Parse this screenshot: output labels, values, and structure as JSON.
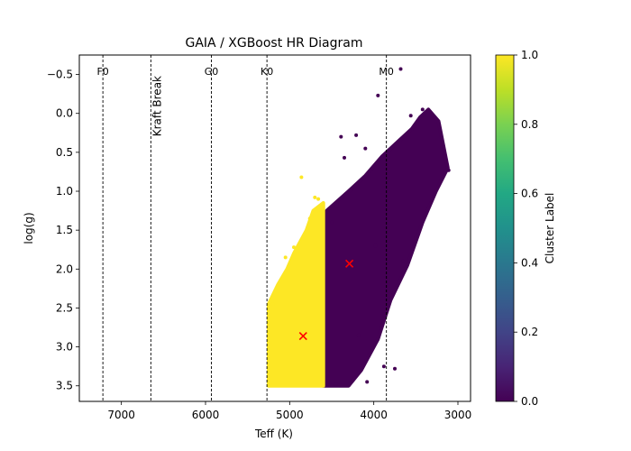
{
  "colors": {
    "background": "#ffffff",
    "cluster_0": "#440154",
    "cluster_1": "#fde725",
    "centroid": "#ff0000",
    "reference_line": "#000000"
  },
  "chart_data": {
    "type": "scatter",
    "title": "GAIA / XGBoost HR Diagram",
    "xlabel": "Teff (K)",
    "ylabel": "log(g)",
    "x_axis_inverted": true,
    "y_axis_inverted": true,
    "xlim": [
      7500,
      2850
    ],
    "ylim": [
      3.7,
      -0.75
    ],
    "x_ticks": [
      7000,
      6000,
      5000,
      4000,
      3000
    ],
    "y_ticks": [
      -0.5,
      0.0,
      0.5,
      1.0,
      1.5,
      2.0,
      2.5,
      3.0,
      3.5
    ],
    "grid": false,
    "colorbar": {
      "label": "Cluster Label",
      "colormap": "viridis",
      "range": [
        0.0,
        1.0
      ],
      "ticks": [
        0.0,
        0.2,
        0.4,
        0.6,
        0.8,
        1.0
      ]
    },
    "reference_lines": [
      {
        "teff": 7220,
        "label": "F0"
      },
      {
        "teff": 6650,
        "label": "Kraft Break",
        "vertical_text": true
      },
      {
        "teff": 5930,
        "label": "G0"
      },
      {
        "teff": 5270,
        "label": "K0"
      },
      {
        "teff": 3850,
        "label": "M0"
      }
    ],
    "centroids": [
      {
        "teff": 4290,
        "logg": 1.93,
        "cluster": 0
      },
      {
        "teff": 4840,
        "logg": 2.86,
        "cluster": 1
      }
    ],
    "clusters": [
      {
        "label": 0,
        "region_polygon": [
          [
            4600,
            3.5
          ],
          [
            4600,
            1.35
          ],
          [
            4560,
            1.25
          ],
          [
            4300,
            1.0
          ],
          [
            4100,
            0.8
          ],
          [
            3900,
            0.55
          ],
          [
            3700,
            0.35
          ],
          [
            3550,
            0.2
          ],
          [
            3450,
            0.05
          ],
          [
            3350,
            -0.05
          ],
          [
            3230,
            0.1
          ],
          [
            3120,
            0.7
          ],
          [
            3260,
            1.0
          ],
          [
            3420,
            1.4
          ],
          [
            3600,
            1.95
          ],
          [
            3800,
            2.4
          ],
          [
            3950,
            2.9
          ],
          [
            4150,
            3.3
          ],
          [
            4300,
            3.5
          ]
        ],
        "outliers": [
          [
            4350,
            0.57
          ],
          [
            4390,
            0.3
          ],
          [
            4210,
            0.28
          ],
          [
            3950,
            -0.23
          ],
          [
            3680,
            -0.57
          ],
          [
            3560,
            0.03
          ],
          [
            3420,
            -0.05
          ],
          [
            3110,
            0.73
          ],
          [
            3750,
            3.28
          ],
          [
            3880,
            3.25
          ],
          [
            4080,
            3.45
          ],
          [
            4250,
            3.43
          ],
          [
            4450,
            3.48
          ],
          [
            4180,
            2.85
          ],
          [
            4500,
            1.4
          ],
          [
            3980,
            1.7
          ],
          [
            3650,
            1.9
          ],
          [
            3500,
            1.6
          ],
          [
            4440,
            1.18
          ],
          [
            4100,
            0.45
          ]
        ]
      },
      {
        "label": 1,
        "region_polygon": [
          [
            5250,
            3.5
          ],
          [
            5250,
            2.45
          ],
          [
            5140,
            2.2
          ],
          [
            5030,
            2.0
          ],
          [
            4950,
            1.8
          ],
          [
            4800,
            1.5
          ],
          [
            4720,
            1.25
          ],
          [
            4600,
            1.15
          ],
          [
            4600,
            3.5
          ]
        ],
        "outliers": [
          [
            4860,
            0.82
          ],
          [
            4700,
            1.08
          ],
          [
            4660,
            1.1
          ],
          [
            5050,
            1.85
          ],
          [
            5200,
            2.45
          ],
          [
            4950,
            1.72
          ],
          [
            4760,
            1.35
          ]
        ]
      }
    ]
  }
}
